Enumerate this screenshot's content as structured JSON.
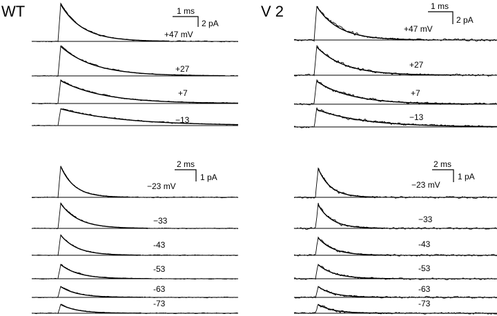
{
  "panels": [
    {
      "label": "WT",
      "groups": [
        {
          "scale_time": "1 ms",
          "scale_current": "2 pA",
          "traces": [
            "+47 mV",
            "+27",
            "+7",
            "−13"
          ],
          "noise": 0.9
        },
        {
          "scale_time": "2 ms",
          "scale_current": "1 pA",
          "traces": [
            "−23 mV",
            "−33",
            "-43",
            "-53",
            "-63",
            "-73"
          ],
          "noise": 0.9
        }
      ]
    },
    {
      "label": "V 2",
      "groups": [
        {
          "scale_time": "1 ms",
          "scale_current": "2 pA",
          "traces": [
            "+47 mV",
            "+27",
            "+7",
            "−13"
          ],
          "noise": 2.2
        },
        {
          "scale_time": "2 ms",
          "scale_current": "1 pA",
          "traces": [
            "−23 mV",
            "−33",
            "-43",
            "-53",
            "-63",
            "-73"
          ],
          "noise": 2.0
        }
      ]
    }
  ],
  "colors": {
    "trace": "#000000",
    "background": "#ffffff"
  }
}
